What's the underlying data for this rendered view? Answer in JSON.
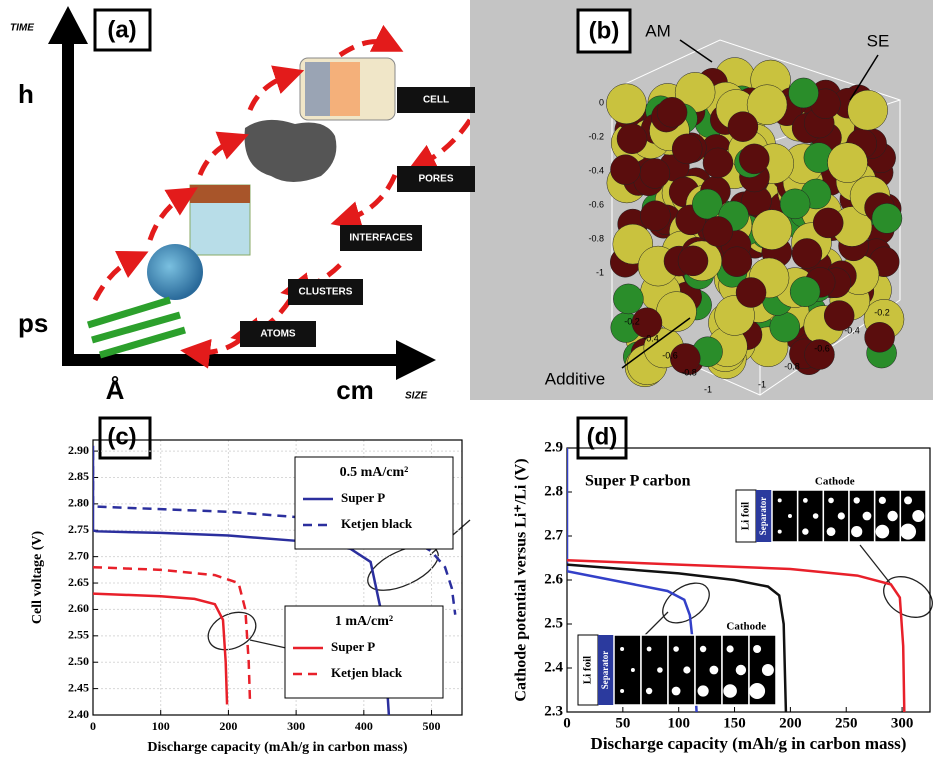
{
  "panels": {
    "a": {
      "label": "(a)",
      "y_axis_title": "TIME",
      "x_axis_title": "SIZE",
      "y_ticks": [
        "h",
        "ps"
      ],
      "x_ticks": [
        "Å",
        "cm"
      ],
      "levels": [
        "CELL",
        "PORES",
        "INTERFACES",
        "CLUSTERS",
        "ATOMS"
      ]
    },
    "b": {
      "label": "(b)",
      "annotations": [
        "AM",
        "SE",
        "Additive"
      ],
      "z_ticks": [
        0,
        -0.2,
        -0.4,
        -0.6,
        -0.8,
        -1
      ],
      "x_ticks": [
        -0.2,
        -0.4,
        -0.6,
        -0.8,
        -1
      ],
      "y_ticks": [
        -1,
        -0.8,
        -0.6,
        -0.4,
        -0.2
      ]
    }
  },
  "chart_data": [
    {
      "type": "line",
      "label": "(c)",
      "x_label": "Discharge capacity (mAh/g in carbon mass)",
      "y_label": "Cell voltage (V)",
      "xlim": [
        0,
        545
      ],
      "ylim": [
        2.4,
        2.921
      ],
      "grid": true,
      "xticks": [
        0,
        100,
        200,
        300,
        400,
        500
      ],
      "yticks": [
        {
          "value": 2.4,
          "label": "2.40"
        },
        {
          "value": 2.45,
          "label": "2.45"
        },
        {
          "value": 2.5,
          "label": "2.50"
        },
        {
          "value": 2.55,
          "label": "2.55"
        },
        {
          "value": 2.6,
          "label": "2.60"
        },
        {
          "value": 2.65,
          "label": "2.65"
        },
        {
          "value": 2.7,
          "label": "2.70"
        },
        {
          "value": 2.75,
          "label": "2.75"
        },
        {
          "value": 2.8,
          "label": "2.80"
        },
        {
          "value": 2.85,
          "label": "2.85"
        },
        {
          "value": 2.9,
          "label": "2.90"
        }
      ],
      "legend_titles": [
        "0.5 mA/cm²",
        "1 mA/cm²"
      ],
      "series": [
        {
          "name": "Super P",
          "color": "#2b2f9e",
          "dash": false,
          "x": [
            0,
            0,
            5,
            100,
            200,
            300,
            380,
            410,
            425,
            432,
            437
          ],
          "values": [
            2.91,
            2.75,
            2.748,
            2.745,
            2.74,
            2.73,
            2.715,
            2.69,
            2.6,
            2.5,
            2.4
          ]
        },
        {
          "name": "Ketjen black",
          "color": "#2b2f9e",
          "dash": true,
          "x": [
            0,
            0,
            100,
            200,
            300,
            400,
            460,
            500,
            520,
            530,
            535
          ],
          "values": [
            2.9,
            2.795,
            2.79,
            2.785,
            2.775,
            2.76,
            2.74,
            2.71,
            2.68,
            2.64,
            2.59
          ]
        },
        {
          "name": "Super P",
          "color": "#e8202a",
          "dash": false,
          "x": [
            0,
            100,
            150,
            180,
            192,
            196,
            198
          ],
          "values": [
            2.63,
            2.625,
            2.62,
            2.61,
            2.58,
            2.5,
            2.42
          ]
        },
        {
          "name": "Ketjen black",
          "color": "#e8202a",
          "dash": true,
          "x": [
            0,
            100,
            180,
            215,
            225,
            230,
            232
          ],
          "values": [
            2.68,
            2.675,
            2.665,
            2.65,
            2.6,
            2.5,
            2.42
          ]
        }
      ]
    },
    {
      "type": "line",
      "label": "(d)",
      "x_label": "Discharge capacity (mAh/g in carbon mass)",
      "y_label": "Cathode potential versus Li⁺/Li (V)",
      "xlim": [
        0,
        325
      ],
      "ylim": [
        2.3,
        2.9
      ],
      "grid": false,
      "xticks": [
        0,
        50,
        100,
        150,
        200,
        250,
        300
      ],
      "yticks": [
        2.3,
        2.4,
        2.5,
        2.6,
        2.7,
        2.8,
        2.9
      ],
      "annotation": "Super P carbon",
      "insets": [
        {
          "title": "Cathode",
          "anode": "Li foil",
          "separator": "Separator"
        },
        {
          "title": "Cathode",
          "anode": "Li foil",
          "separator": "Separator"
        }
      ],
      "series": [
        {
          "color": "#3340c8",
          "x": [
            0,
            0,
            20,
            60,
            90,
            105,
            110,
            113,
            116
          ],
          "values": [
            2.9,
            2.62,
            2.61,
            2.59,
            2.575,
            2.555,
            2.52,
            2.45,
            2.3
          ]
        },
        {
          "color": "#111111",
          "x": [
            0,
            50,
            100,
            150,
            180,
            190,
            194,
            196
          ],
          "values": [
            2.635,
            2.625,
            2.615,
            2.6,
            2.585,
            2.565,
            2.5,
            2.3
          ]
        },
        {
          "color": "#e8202a",
          "x": [
            0,
            100,
            200,
            260,
            290,
            298,
            301,
            302
          ],
          "values": [
            2.645,
            2.635,
            2.625,
            2.61,
            2.59,
            2.56,
            2.45,
            2.3
          ]
        }
      ]
    }
  ]
}
